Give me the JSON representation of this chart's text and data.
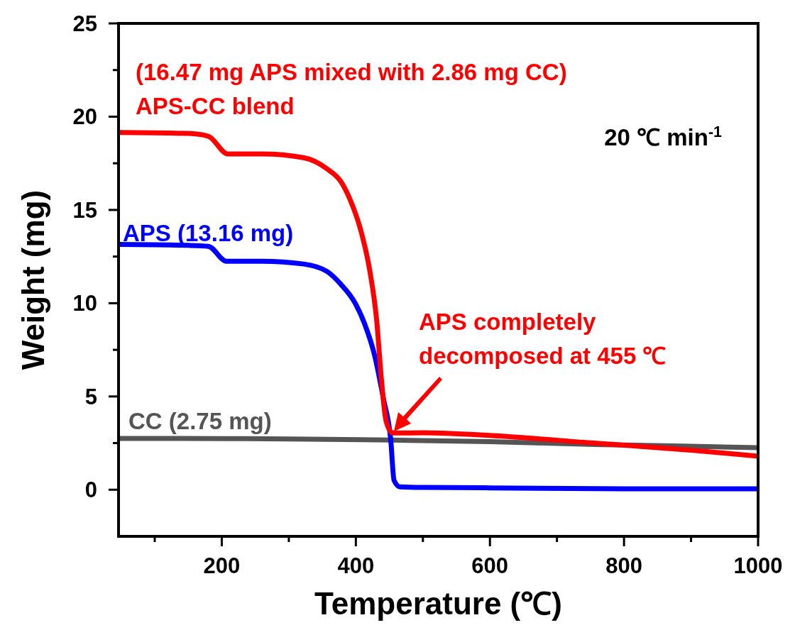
{
  "chart_data": {
    "type": "line",
    "xlabel": "Temperature (℃)",
    "ylabel": "Weight (mg)",
    "xlim": [
      46,
      1000
    ],
    "ylim": [
      -2.5,
      25
    ],
    "xticks": [
      {
        "value": 100,
        "label": null
      },
      200,
      {
        "value": 300,
        "label": null
      },
      400,
      {
        "value": 500,
        "label": null
      },
      600,
      {
        "value": 700,
        "label": null
      },
      800,
      {
        "value": 900,
        "label": null
      },
      1000
    ],
    "yticks": [
      0,
      {
        "value": 2.5,
        "label": null
      },
      5,
      {
        "value": 7.5,
        "label": null
      },
      10,
      {
        "value": 12.5,
        "label": null
      },
      15,
      {
        "value": 17.5,
        "label": null
      },
      20,
      {
        "value": 22.5,
        "label": null
      },
      25
    ],
    "grid": false,
    "marker": "none",
    "line_style": "solid",
    "series": [
      {
        "name": "CC (2.75 mg)",
        "color": "#555555",
        "x": [
          46,
          200,
          300,
          452,
          600,
          755,
          900,
          1000
        ],
        "values": [
          2.75,
          2.74,
          2.72,
          2.66,
          2.58,
          2.43,
          2.33,
          2.25
        ]
      },
      {
        "name": "APS (13.16 mg)",
        "color": "#0000ff",
        "x": [
          46,
          150,
          180,
          207,
          260,
          322,
          357,
          378,
          399,
          413,
          428,
          441,
          452,
          457,
          466,
          500,
          600,
          800,
          1000
        ],
        "values": [
          13.15,
          13.1,
          13.05,
          12.25,
          12.25,
          12.1,
          11.7,
          11.0,
          10.0,
          8.9,
          7.2,
          4.9,
          2.7,
          0.5,
          0.15,
          0.12,
          0.1,
          0.05,
          0.05
        ]
      },
      {
        "name": "APS-CC blend",
        "color": "#ff0000",
        "x": [
          46,
          150,
          180,
          209,
          260,
          322,
          357,
          378,
          392,
          407,
          421,
          431,
          438,
          445,
          455,
          500,
          603,
          755,
          906,
          1000
        ],
        "values": [
          19.15,
          19.1,
          18.95,
          18.0,
          18.0,
          17.8,
          17.2,
          16.5,
          15.5,
          13.95,
          11.7,
          9.1,
          5.97,
          3.7,
          3.04,
          3.05,
          2.9,
          2.5,
          2.1,
          1.8
        ]
      }
    ],
    "annotations": [
      {
        "text": "(16.47 mg APS mixed with 2.86 mg CC)"
      },
      {
        "text": "20 ℃ min$^{-1}$"
      },
      {
        "text": "APS completely\ndecomposed at 455 ℃"
      }
    ]
  }
}
